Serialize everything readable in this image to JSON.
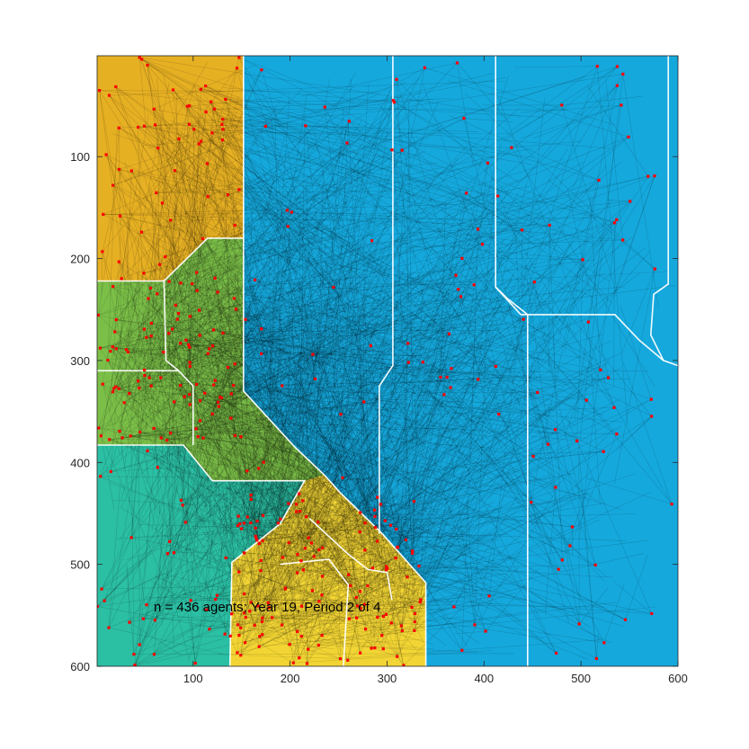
{
  "chart_data": {
    "type": "scatter",
    "annotation": "n = 436 agents; Year 19, Period 2 of 4",
    "xlim": [
      1,
      600
    ],
    "ylim": [
      1,
      600
    ],
    "y_reversed": true,
    "x_ticks": [
      100,
      200,
      300,
      400,
      500,
      600
    ],
    "y_ticks": [
      100,
      200,
      300,
      400,
      500,
      600
    ],
    "grid": false,
    "colors": {
      "marker": "#ff0000",
      "trail": "#000000",
      "boundary": "#ffffff",
      "axis": "#262626"
    },
    "regions": [
      {
        "color": "#15a8dc",
        "polygon": [
          [
            1,
            1
          ],
          [
            600,
            1
          ],
          [
            600,
            600
          ],
          [
            340,
            600
          ],
          [
            340,
            518
          ],
          [
            295,
            470
          ],
          [
            252,
            430
          ],
          [
            190,
            415
          ],
          [
            152,
            330
          ],
          [
            152,
            1
          ]
        ]
      },
      {
        "color": "#e6b023",
        "polygon": [
          [
            1,
            1
          ],
          [
            152,
            1
          ],
          [
            152,
            180
          ],
          [
            115,
            180
          ],
          [
            70,
            222
          ],
          [
            1,
            222
          ]
        ]
      },
      {
        "color": "#7bbf48",
        "polygon": [
          [
            1,
            222
          ],
          [
            70,
            222
          ],
          [
            115,
            180
          ],
          [
            152,
            180
          ],
          [
            152,
            330
          ],
          [
            205,
            385
          ],
          [
            235,
            412
          ],
          [
            215,
            418
          ],
          [
            120,
            418
          ],
          [
            90,
            383
          ],
          [
            1,
            383
          ]
        ]
      },
      {
        "color": "#2bbfa4",
        "polygon": [
          [
            1,
            383
          ],
          [
            90,
            383
          ],
          [
            120,
            418
          ],
          [
            215,
            418
          ],
          [
            190,
            460
          ],
          [
            140,
            498
          ],
          [
            138,
            600
          ],
          [
            1,
            600
          ]
        ]
      },
      {
        "color": "#f2d534",
        "polygon": [
          [
            138,
            600
          ],
          [
            140,
            498
          ],
          [
            190,
            460
          ],
          [
            215,
            418
          ],
          [
            235,
            412
          ],
          [
            252,
            430
          ],
          [
            295,
            470
          ],
          [
            340,
            518
          ],
          [
            340,
            600
          ]
        ]
      }
    ],
    "boundaries": [
      [
        [
          152,
          1
        ],
        [
          152,
          330
        ],
        [
          205,
          385
        ],
        [
          235,
          412
        ],
        [
          252,
          430
        ],
        [
          295,
          470
        ],
        [
          340,
          518
        ],
        [
          340,
          600
        ]
      ],
      [
        [
          1,
          222
        ],
        [
          70,
          222
        ],
        [
          115,
          180
        ],
        [
          152,
          180
        ]
      ],
      [
        [
          1,
          383
        ],
        [
          90,
          383
        ],
        [
          120,
          418
        ],
        [
          215,
          418
        ],
        [
          190,
          460
        ],
        [
          140,
          498
        ],
        [
          138,
          600
        ]
      ],
      [
        [
          1,
          310
        ],
        [
          85,
          310
        ],
        [
          100,
          325
        ],
        [
          100,
          383
        ]
      ],
      [
        [
          70,
          222
        ],
        [
          72,
          300
        ],
        [
          85,
          310
        ]
      ],
      [
        [
          306,
          1
        ],
        [
          306,
          305
        ],
        [
          292,
          325
        ],
        [
          292,
          470
        ]
      ],
      [
        [
          412,
          1
        ],
        [
          412,
          228
        ],
        [
          425,
          240
        ],
        [
          445,
          255
        ],
        [
          445,
          600
        ]
      ],
      [
        [
          412,
          228
        ],
        [
          438,
          255
        ],
        [
          535,
          255
        ],
        [
          560,
          280
        ],
        [
          585,
          300
        ],
        [
          600,
          305
        ]
      ],
      [
        [
          590,
          1
        ],
        [
          590,
          225
        ],
        [
          575,
          235
        ],
        [
          572,
          275
        ],
        [
          585,
          300
        ]
      ],
      [
        [
          220,
          455
        ],
        [
          260,
          490
        ],
        [
          280,
          505
        ],
        [
          300,
          508
        ],
        [
          305,
          535
        ]
      ],
      [
        [
          190,
          500
        ],
        [
          240,
          495
        ],
        [
          260,
          520
        ],
        [
          255,
          600
        ]
      ]
    ],
    "clusters": [
      {
        "region": "gold-topleft",
        "x": [
          1,
          150
        ],
        "y": [
          1,
          220
        ],
        "count": 58,
        "trail_density": 0.9
      },
      {
        "region": "green-left",
        "x": [
          1,
          150
        ],
        "y": [
          220,
          380
        ],
        "count": 96,
        "trail_density": 1.0
      },
      {
        "region": "teal-bottomleft",
        "x": [
          1,
          200
        ],
        "y": [
          385,
          600
        ],
        "count": 46,
        "trail_density": 0.8
      },
      {
        "region": "yellow-bottom",
        "x": [
          145,
          335
        ],
        "y": [
          430,
          600
        ],
        "count": 112,
        "trail_density": 1.0
      },
      {
        "region": "blue-right",
        "x": [
          152,
          600
        ],
        "y": [
          1,
          600
        ],
        "count": 124,
        "trail_density": 0.6
      }
    ]
  }
}
